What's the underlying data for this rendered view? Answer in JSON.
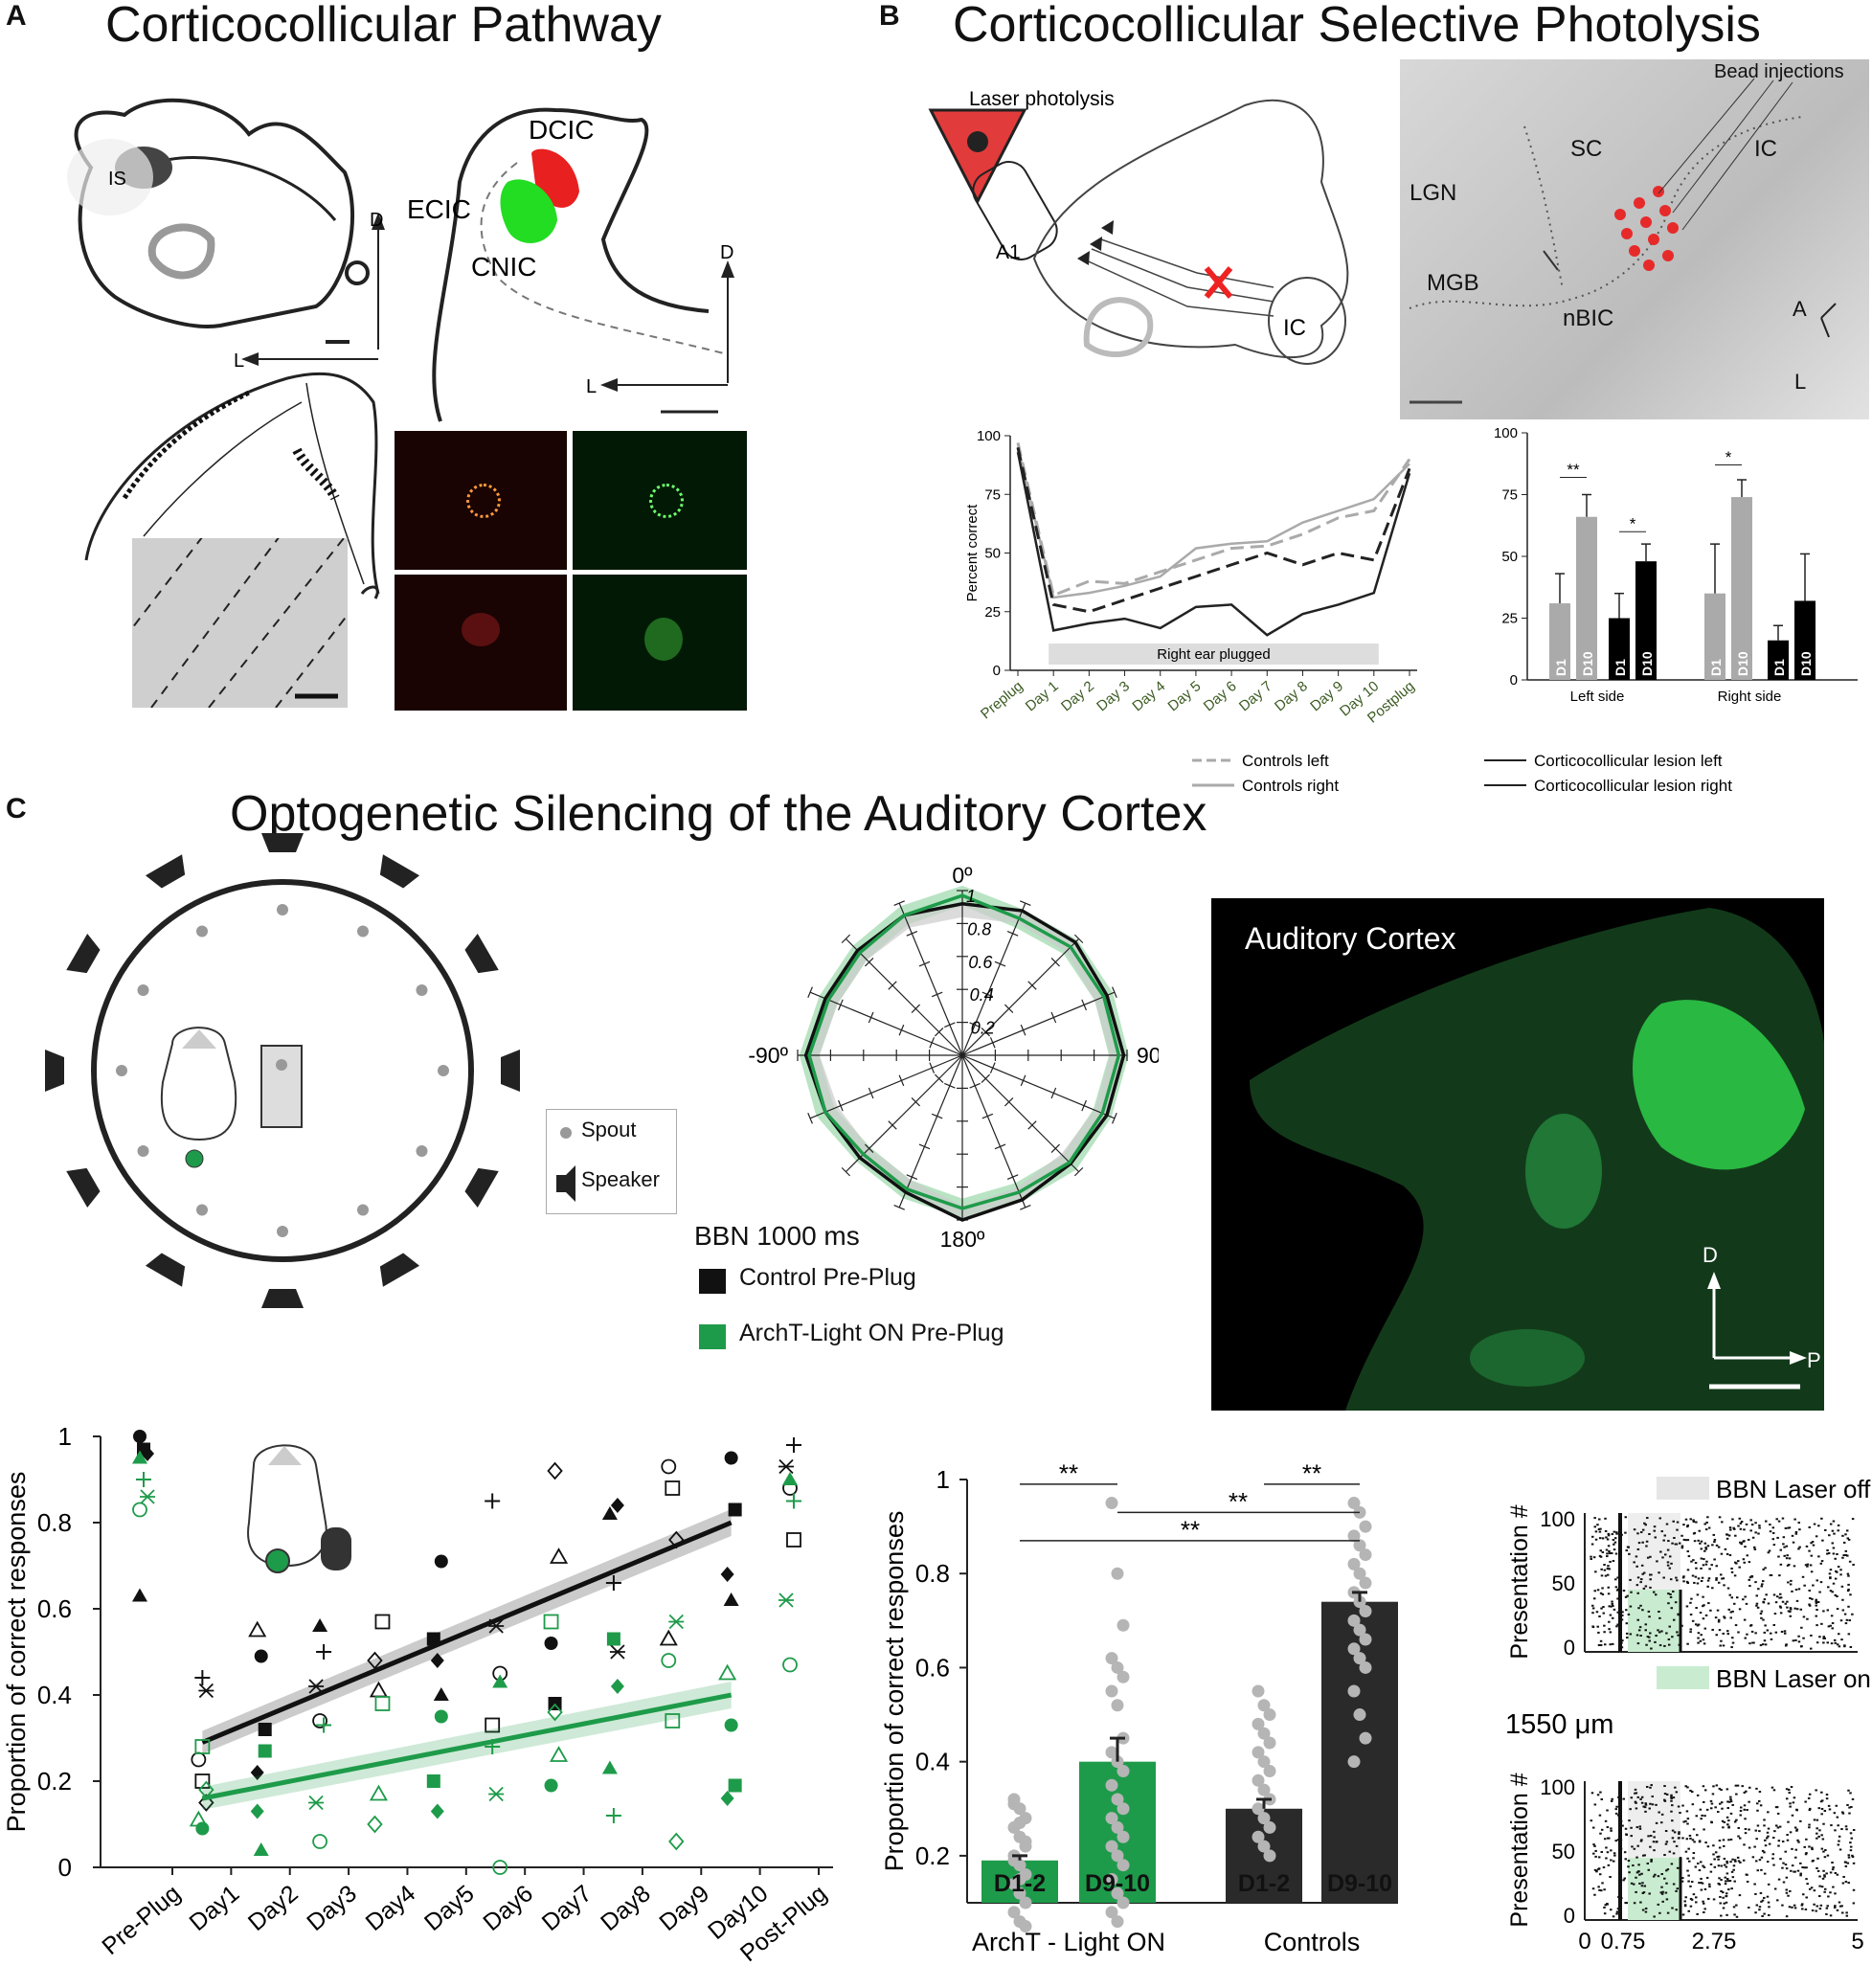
{
  "panel_a": {
    "label": "A",
    "title": "Corticocollicular Pathway",
    "brain_labels": [
      "IS",
      "DCIC",
      "ECIC",
      "CNIC"
    ],
    "axis_d": "D",
    "axis_l": "L"
  },
  "panel_b": {
    "label": "B",
    "title": "Corticocollicular Selective Photolysis",
    "diagram_labels": {
      "laser": "Laser photolysis",
      "a1": "A1",
      "ic": "IC"
    },
    "photo_labels": {
      "beads": "Bead injections",
      "sc": "SC",
      "ic": "IC",
      "lgn": "LGN",
      "mgb": "MGB",
      "nbic": "nBIC",
      "a": "A",
      "l": "L"
    },
    "line_legend": [
      "Controls left",
      "Controls right"
    ],
    "lesion_legend": [
      "Corticocollicular lesion left",
      "Corticocollicular lesion right"
    ]
  },
  "panel_c": {
    "label": "C",
    "title": "Optogenetic Silencing of the Auditory Cortex",
    "arena_legend": {
      "spout": "Spout",
      "speaker": "Speaker"
    },
    "polar": {
      "angles": [
        "0º",
        "90º",
        "180º",
        "-90º"
      ],
      "radii": [
        "1",
        "0.8",
        "0.6",
        "0.4",
        "0.2"
      ],
      "stimulus": "BBN 1000 ms",
      "legend": [
        "Control Pre-Plug",
        "ArchT-Light ON Pre-Plug"
      ],
      "colors": {
        "control": "#111111",
        "archt": "#1e9b4a"
      }
    },
    "micrograph": {
      "label": "Auditory Cortex",
      "d": "D",
      "p": "P"
    },
    "raster": {
      "legend_off": "BBN Laser off",
      "legend_on": "BBN Laser on",
      "depth": "1550 μm",
      "ylabel": "Presentation #",
      "yticks": [
        "100",
        "50",
        "0"
      ],
      "xticks": [
        "0",
        "0.75",
        "2.75",
        "5"
      ]
    }
  },
  "chart_data": [
    {
      "type": "line",
      "panel": "B-left",
      "categories": [
        "Preplug",
        "Day 1",
        "Day 2",
        "Day 3",
        "Day 4",
        "Day 5",
        "Day 6",
        "Day 7",
        "Day 8",
        "Day 9",
        "Day 10",
        "Postplug"
      ],
      "ylabel": "Percent correct",
      "yticks": [
        "0",
        "25",
        "50",
        "75",
        "100"
      ],
      "ylim": [
        0,
        100
      ],
      "annotation": "Right ear plugged",
      "series": [
        {
          "name": "Controls left",
          "style": "dashed-grey",
          "values": [
            97,
            32,
            38,
            37,
            42,
            47,
            52,
            53,
            58,
            65,
            68,
            90
          ]
        },
        {
          "name": "Controls right",
          "style": "solid-grey",
          "values": [
            95,
            31,
            33,
            36,
            40,
            52,
            54,
            55,
            63,
            68,
            73,
            88
          ]
        },
        {
          "name": "Corticocollicular lesion left",
          "style": "dashed-black",
          "values": [
            95,
            28,
            25,
            30,
            35,
            40,
            45,
            50,
            45,
            50,
            47,
            86
          ]
        },
        {
          "name": "Corticocollicular lesion right",
          "style": "solid-black",
          "values": [
            93,
            17,
            20,
            22,
            18,
            27,
            28,
            15,
            24,
            28,
            33,
            84
          ]
        }
      ]
    },
    {
      "type": "bar",
      "panel": "B-right",
      "yticks": [
        "0",
        "25",
        "50",
        "75",
        "100"
      ],
      "ylim": [
        0,
        100
      ],
      "groups": [
        "Left side",
        "Right side"
      ],
      "bars": [
        {
          "group": "Left side",
          "label": "D1",
          "color": "#aaaaaa",
          "value": 31,
          "err": 12
        },
        {
          "group": "Left side",
          "label": "D10",
          "color": "#aaaaaa",
          "value": 66,
          "err": 9
        },
        {
          "group": "Left side",
          "label": "D1",
          "color": "#000000",
          "value": 25,
          "err": 10
        },
        {
          "group": "Left side",
          "label": "D10",
          "color": "#000000",
          "value": 48,
          "err": 7
        },
        {
          "group": "Right side",
          "label": "D1",
          "color": "#aaaaaa",
          "value": 35,
          "err": 20
        },
        {
          "group": "Right side",
          "label": "D10",
          "color": "#aaaaaa",
          "value": 74,
          "err": 7
        },
        {
          "group": "Right side",
          "label": "D1",
          "color": "#000000",
          "value": 16,
          "err": 6
        },
        {
          "group": "Right side",
          "label": "D10",
          "color": "#000000",
          "value": 32,
          "err": 19
        }
      ],
      "significance": [
        "**",
        "*",
        "*"
      ]
    },
    {
      "type": "scatter",
      "panel": "C-left",
      "categories": [
        "Pre-Plug",
        "Day1",
        "Day2",
        "Day3",
        "Day4",
        "Day5",
        "Day6",
        "Day7",
        "Day8",
        "Day9",
        "Day10",
        "Post-Plug"
      ],
      "ylabel": "Proportion of correct responses",
      "yticks": [
        "0",
        "0.2",
        "0.4",
        "0.6",
        "0.8",
        "1"
      ],
      "ylim": [
        0,
        1
      ],
      "series": [
        {
          "name": "Controls",
          "color": "#111111",
          "fit": [
            [
              1,
              0.29
            ],
            [
              10,
              0.8
            ]
          ],
          "points": [
            [
              0,
              1
            ],
            [
              0,
              0.97
            ],
            [
              0,
              0.96
            ],
            [
              0,
              0.63
            ],
            [
              1,
              0.44
            ],
            [
              1,
              0.41
            ],
            [
              1,
              0.25
            ],
            [
              1,
              0.2
            ],
            [
              1,
              0.15
            ],
            [
              2,
              0.55
            ],
            [
              2,
              0.49
            ],
            [
              2,
              0.32
            ],
            [
              2,
              0.22
            ],
            [
              3,
              0.56
            ],
            [
              3,
              0.5
            ],
            [
              3,
              0.42
            ],
            [
              3,
              0.34
            ],
            [
              4,
              0.57
            ],
            [
              4,
              0.48
            ],
            [
              4,
              0.41
            ],
            [
              5,
              0.71
            ],
            [
              5,
              0.53
            ],
            [
              5,
              0.48
            ],
            [
              5,
              0.4
            ],
            [
              6,
              0.85
            ],
            [
              6,
              0.56
            ],
            [
              6,
              0.45
            ],
            [
              6,
              0.33
            ],
            [
              7,
              0.92
            ],
            [
              7,
              0.72
            ],
            [
              7,
              0.52
            ],
            [
              7,
              0.38
            ],
            [
              8,
              0.84
            ],
            [
              8,
              0.82
            ],
            [
              8,
              0.66
            ],
            [
              8,
              0.5
            ],
            [
              9,
              0.93
            ],
            [
              9,
              0.88
            ],
            [
              9,
              0.76
            ],
            [
              9,
              0.53
            ],
            [
              10,
              0.95
            ],
            [
              10,
              0.83
            ],
            [
              10,
              0.68
            ],
            [
              10,
              0.62
            ],
            [
              11,
              0.98
            ],
            [
              11,
              0.93
            ],
            [
              11,
              0.88
            ],
            [
              11,
              0.76
            ]
          ]
        },
        {
          "name": "ArchT - Light ON",
          "color": "#1e9b4a",
          "fit": [
            [
              1,
              0.16
            ],
            [
              10,
              0.4
            ]
          ],
          "points": [
            [
              0,
              0.95
            ],
            [
              0,
              0.9
            ],
            [
              0,
              0.86
            ],
            [
              0,
              0.83
            ],
            [
              1,
              0.28
            ],
            [
              1,
              0.18
            ],
            [
              1,
              0.11
            ],
            [
              1,
              0.09
            ],
            [
              2,
              0.27
            ],
            [
              2,
              0.13
            ],
            [
              2,
              0.04
            ],
            [
              3,
              0.33
            ],
            [
              3,
              0.15
            ],
            [
              3,
              0.06
            ],
            [
              4,
              0.38
            ],
            [
              4,
              0.1
            ],
            [
              4,
              0.17
            ],
            [
              5,
              0.35
            ],
            [
              5,
              0.2
            ],
            [
              5,
              0.13
            ],
            [
              6,
              0.43
            ],
            [
              6,
              0.28
            ],
            [
              6,
              0.17
            ],
            [
              6,
              0
            ],
            [
              7,
              0.57
            ],
            [
              7,
              0.36
            ],
            [
              7,
              0.26
            ],
            [
              7,
              0.19
            ],
            [
              8,
              0.53
            ],
            [
              8,
              0.42
            ],
            [
              8,
              0.23
            ],
            [
              8,
              0.12
            ],
            [
              9,
              0.57
            ],
            [
              9,
              0.48
            ],
            [
              9,
              0.34
            ],
            [
              9,
              0.06
            ],
            [
              10,
              0.45
            ],
            [
              10,
              0.33
            ],
            [
              10,
              0.19
            ],
            [
              10,
              0.16
            ],
            [
              11,
              0.9
            ],
            [
              11,
              0.85
            ],
            [
              11,
              0.62
            ],
            [
              11,
              0.47
            ]
          ]
        }
      ]
    },
    {
      "type": "bar",
      "panel": "C-middle",
      "ylabel": "Proportion of correct responses",
      "yticks": [
        "0.2",
        "0.4",
        "0.6",
        "0.8",
        "1"
      ],
      "ylim": [
        0.1,
        1
      ],
      "groups": [
        "ArchT - Light ON",
        "Controls"
      ],
      "bars": [
        {
          "group": "ArchT - Light ON",
          "label": "D1-2",
          "color": "#1e9b4a",
          "value": 0.19,
          "err": 0.01,
          "dots": [
            0.32,
            0.3,
            0.28,
            0.26,
            0.24,
            0.22,
            0.2,
            0.18,
            0.16,
            0.14,
            0.12,
            0.1,
            0.08,
            0.06,
            0.05,
            0.31,
            0.27,
            0.23,
            0.19,
            0.15
          ]
        },
        {
          "group": "ArchT - Light ON",
          "label": "D9-10",
          "color": "#1e9b4a",
          "value": 0.4,
          "err": 0.05,
          "dots": [
            0.95,
            0.8,
            0.69,
            0.62,
            0.6,
            0.58,
            0.55,
            0.52,
            0.45,
            0.42,
            0.4,
            0.38,
            0.35,
            0.32,
            0.3,
            0.28,
            0.26,
            0.24,
            0.22,
            0.2,
            0.18,
            0.15,
            0.12,
            0.1,
            0.08,
            0.06
          ]
        },
        {
          "group": "Controls",
          "label": "D1-2",
          "color": "#2a2a2a",
          "value": 0.3,
          "err": 0.02,
          "dots": [
            0.55,
            0.52,
            0.5,
            0.48,
            0.46,
            0.44,
            0.42,
            0.4,
            0.38,
            0.36,
            0.34,
            0.32,
            0.3,
            0.28,
            0.26,
            0.24,
            0.22,
            0.2
          ]
        },
        {
          "group": "Controls",
          "label": "D9-10",
          "color": "#2a2a2a",
          "value": 0.74,
          "err": 0.02,
          "dots": [
            0.95,
            0.93,
            0.9,
            0.88,
            0.86,
            0.84,
            0.82,
            0.8,
            0.78,
            0.76,
            0.74,
            0.72,
            0.7,
            0.68,
            0.66,
            0.64,
            0.62,
            0.6,
            0.55,
            0.5,
            0.45,
            0.4
          ]
        }
      ],
      "significance": [
        "**",
        "**",
        "**",
        "**"
      ]
    },
    {
      "type": "line",
      "panel": "C-polar",
      "angles_deg": [
        0,
        22.5,
        45,
        67.5,
        90,
        112.5,
        135,
        157.5,
        180,
        202.5,
        225,
        247.5,
        270,
        292.5,
        315,
        337.5
      ],
      "series": [
        {
          "name": "Control Pre-Plug",
          "values": [
            0.92,
            0.95,
            0.97,
            0.95,
            0.98,
            0.95,
            0.93,
            0.95,
            1,
            0.9,
            0.88,
            0.9,
            0.95,
            0.9,
            0.9,
            0.92
          ]
        },
        {
          "name": "ArchT-Light ON Pre-Plug",
          "values": [
            0.97,
            0.9,
            0.93,
            0.93,
            0.95,
            0.92,
            0.92,
            0.9,
            0.93,
            0.88,
            0.85,
            0.9,
            0.93,
            0.88,
            0.88,
            0.92
          ]
        }
      ]
    }
  ]
}
